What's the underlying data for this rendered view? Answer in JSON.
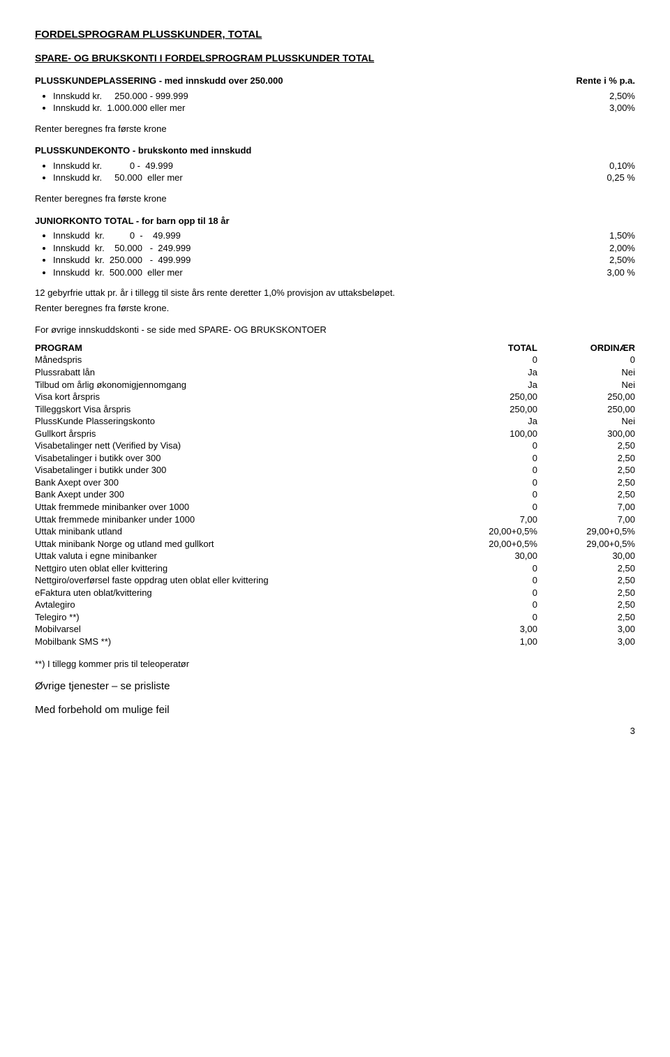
{
  "title": "FORDELSPROGRAM PLUSSKUNDER, TOTAL",
  "section_title": "SPARE- OG BRUKSKONTI I FORDELSPROGRAM PLUSSKUNDER TOTAL",
  "plassering": {
    "heading_left": "PLUSSKUNDEPLASSERING - med innskudd over 250.000",
    "heading_right": "Rente i % p.a.",
    "items": [
      {
        "label": "Innskudd kr.     250.000 - 999.999",
        "value": "2,50%"
      },
      {
        "label": "Innskudd kr.  1.000.000 eller mer",
        "value": "3,00%"
      }
    ],
    "note": "Renter beregnes fra første krone"
  },
  "plusskundekonto": {
    "heading": "PLUSSKUNDEKONTO - brukskonto med innskudd",
    "items": [
      {
        "label": "Innskudd kr.           0 -  49.999",
        "value": "0,10%"
      },
      {
        "label": "Innskudd kr.     50.000  eller mer",
        "value": "0,25 %"
      }
    ],
    "note": "Renter beregnes fra første krone"
  },
  "junior": {
    "heading": "JUNIORKONTO TOTAL  - for barn opp til 18 år",
    "items": [
      {
        "label": "Innskudd  kr.          0  -    49.999",
        "value": "1,50%"
      },
      {
        "label": "Innskudd  kr.    50.000   -  249.999",
        "value": "2,00%"
      },
      {
        "label": "Innskudd  kr.  250.000   -  499.999",
        "value": "2,50%"
      },
      {
        "label": "Innskudd  kr.  500.000  eller mer",
        "value": "3,00 %"
      }
    ],
    "note1": "12 gebyrfrie uttak pr. år  i tillegg til siste års rente deretter 1,0% provisjon av uttaksbeløpet.",
    "note2": "Renter beregnes fra første krone."
  },
  "other_accounts_note": "For øvrige innskuddskonti  - se side med SPARE- OG BRUKSKONTOER",
  "program_table": {
    "headers": [
      "PROGRAM",
      "TOTAL",
      "ORDINÆR"
    ],
    "rows": [
      [
        "Månedspris",
        "0",
        "0"
      ],
      [
        "Plussrabatt lån",
        "Ja",
        "Nei"
      ],
      [
        "Tilbud om årlig økonomigjennomgang",
        "Ja",
        "Nei"
      ],
      [
        "Visa kort årspris",
        "250,00",
        "250,00"
      ],
      [
        "Tilleggskort Visa årspris",
        "250,00",
        "250,00"
      ],
      [
        "PlussKunde Plasseringskonto",
        "Ja",
        "Nei"
      ],
      [
        "Gullkort årspris",
        "100,00",
        "300,00"
      ],
      [
        "Visabetalinger nett (Verified by Visa)",
        "0",
        "2,50"
      ],
      [
        "Visabetalinger i butikk over 300",
        "0",
        "2,50"
      ],
      [
        "Visabetalinger i butikk under 300",
        "0",
        "2,50"
      ],
      [
        "Bank Axept over 300",
        "0",
        "2,50"
      ],
      [
        "Bank Axept under 300",
        "0",
        "2,50"
      ],
      [
        "Uttak fremmede minibanker over 1000",
        "0",
        "7,00"
      ],
      [
        "Uttak fremmede minibanker under 1000",
        "7,00",
        "7,00"
      ],
      [
        "Uttak minibank utland",
        "20,00+0,5%",
        "29,00+0,5%"
      ],
      [
        "Uttak minibank Norge og utland med gullkort",
        "20,00+0,5%",
        "29,00+0,5%"
      ],
      [
        "Uttak valuta i egne minibanker",
        "30,00",
        "30,00"
      ],
      [
        "Nettgiro uten oblat eller kvittering",
        "0",
        "2,50"
      ],
      [
        "Nettgiro/overførsel faste oppdrag uten oblat eller kvittering",
        "0",
        "2,50"
      ],
      [
        "eFaktura uten oblat/kvittering",
        "0",
        "2,50"
      ],
      [
        "Avtalegiro",
        "0",
        "2,50"
      ],
      [
        "Telegiro **)",
        "0",
        "2,50"
      ],
      [
        "Mobilvarsel",
        "3,00",
        "3,00"
      ],
      [
        "Mobilbank SMS **)",
        "1,00",
        "3,00"
      ]
    ]
  },
  "footnote": "**) I tillegg kommer pris til teleoperatør",
  "final1": "Øvrige tjenester – se prisliste",
  "final2": "Med forbehold om mulige feil",
  "pagenum": "3"
}
